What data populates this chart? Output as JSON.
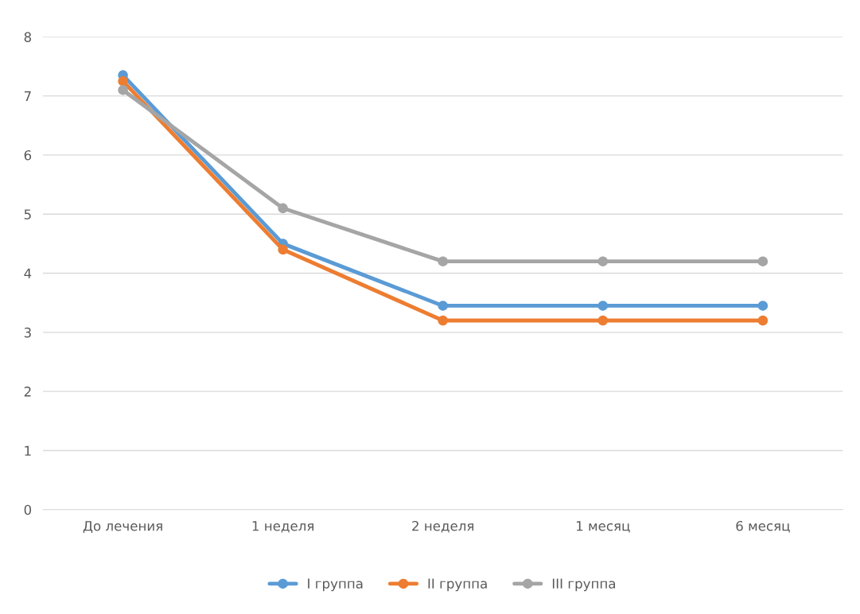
{
  "chart_data": {
    "type": "line",
    "categories": [
      "До лечения",
      "1 неделя",
      "2 неделя",
      "1 месяц",
      "6 месяц"
    ],
    "series": [
      {
        "name": "I группа",
        "color": "#5b9bd5",
        "values": [
          7.35,
          4.5,
          3.45,
          3.45,
          3.45
        ]
      },
      {
        "name": "II группа",
        "color": "#ed7d31",
        "values": [
          7.25,
          4.4,
          3.2,
          3.2,
          3.2
        ]
      },
      {
        "name": "III группа",
        "color": "#a5a5a5",
        "values": [
          7.1,
          5.1,
          4.2,
          4.2,
          4.2
        ]
      }
    ],
    "ylim": [
      0,
      8
    ],
    "yticks": [
      0,
      1,
      2,
      3,
      4,
      5,
      6,
      7,
      8
    ],
    "grid": "y",
    "legend": "bottom",
    "marker": "circle",
    "line_style": "solid"
  }
}
